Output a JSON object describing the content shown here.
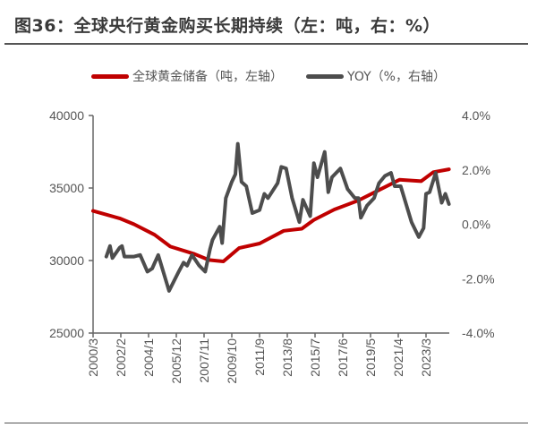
{
  "title": "图36：全球央行黄金购买长期持续（左：吨，右：%）",
  "colors": {
    "reserves": "#c00000",
    "yoy": "#4d4d4d"
  },
  "chart_data": {
    "type": "line",
    "title": "图36：全球央行黄金购买长期持续（左：吨，右：%）",
    "legend_position": "top",
    "grid": false,
    "x_ticks": [
      "2000/3",
      "2002/2",
      "2004/1",
      "2005/12",
      "2007/11",
      "2009/10",
      "2011/9",
      "2013/8",
      "2015/7",
      "2017/6",
      "2019/5",
      "2021/4",
      "2023/3"
    ],
    "y_left": {
      "range": [
        25000,
        40000
      ],
      "ticks": [
        "25000",
        "30000",
        "35000",
        "40000"
      ]
    },
    "y_right": {
      "range": [
        -4.0,
        4.0
      ],
      "ticks": [
        "-4.0%",
        "-2.0%",
        "0.0%",
        "2.0%",
        "4.0%"
      ]
    },
    "series": [
      {
        "name": "全球黄金储备（吨，左轴）",
        "axis": "left",
        "x": [
          "2000/3",
          "2002/1",
          "2003/1",
          "2004/6",
          "2005/7",
          "2007/3",
          "2008/3",
          "2009/3",
          "2010/4",
          "2011/9",
          "2013/5",
          "2014/8",
          "2015/6",
          "2016/11",
          "2018/7",
          "2019/12",
          "2021/5",
          "2022/11",
          "2023/9",
          "2024/10"
        ],
        "y": [
          33420,
          32910,
          32500,
          31780,
          30960,
          30450,
          30040,
          29940,
          30860,
          31170,
          32050,
          32190,
          32800,
          33520,
          34140,
          34860,
          35570,
          35470,
          36090,
          36290
        ]
      },
      {
        "name": "YOY（%，右轴）",
        "axis": "right",
        "x": [
          "2001/2",
          "2001/5",
          "2001/7",
          "2002/1",
          "2002/3",
          "2002/5",
          "2003/1",
          "2003/6",
          "2003/12",
          "2004/4",
          "2004/9",
          "2005/6",
          "2006/2",
          "2006/6",
          "2006/9",
          "2007/1",
          "2007/7",
          "2007/12",
          "2008/4",
          "2008/6",
          "2008/12",
          "2009/2",
          "2009/5",
          "2009/10",
          "2010/1",
          "2010/3",
          "2010/6",
          "2010/10",
          "2011/3",
          "2011/9",
          "2012/1",
          "2012/4",
          "2012/12",
          "2013/3",
          "2013/7",
          "2013/12",
          "2014/6",
          "2014/9",
          "2015/3",
          "2015/6",
          "2015/9",
          "2016/3",
          "2016/6",
          "2016/9",
          "2017/4",
          "2017/10",
          "2018/4",
          "2018/7",
          "2018/9",
          "2019/2",
          "2019/8",
          "2019/12",
          "2020/5",
          "2020/10",
          "2021/1",
          "2021/6",
          "2022/3",
          "2022/9",
          "2023/1",
          "2023/3",
          "2023/6",
          "2023/11",
          "2024/4",
          "2024/7",
          "2024/10"
        ],
        "y": [
          -1.19,
          -0.8,
          -1.24,
          -0.86,
          -0.8,
          -1.19,
          -1.19,
          -1.13,
          -1.74,
          -1.63,
          -1.13,
          -2.45,
          -1.74,
          -1.41,
          -1.52,
          -1.13,
          -1.52,
          -1.74,
          -0.91,
          -0.58,
          -0.09,
          -0.69,
          0.96,
          1.56,
          1.84,
          2.96,
          1.56,
          1.4,
          0.41,
          0.52,
          1.12,
          0.96,
          1.51,
          2.11,
          2.05,
          0.96,
          0.08,
          0.9,
          0.3,
          2.25,
          1.73,
          2.66,
          1.18,
          1.73,
          2.05,
          1.29,
          0.96,
          0.96,
          0.24,
          0.68,
          0.96,
          1.51,
          1.78,
          1.89,
          1.4,
          1.4,
          0.08,
          -0.47,
          -0.14,
          1.12,
          1.18,
          1.89,
          0.79,
          1.12,
          0.74
        ]
      }
    ]
  }
}
